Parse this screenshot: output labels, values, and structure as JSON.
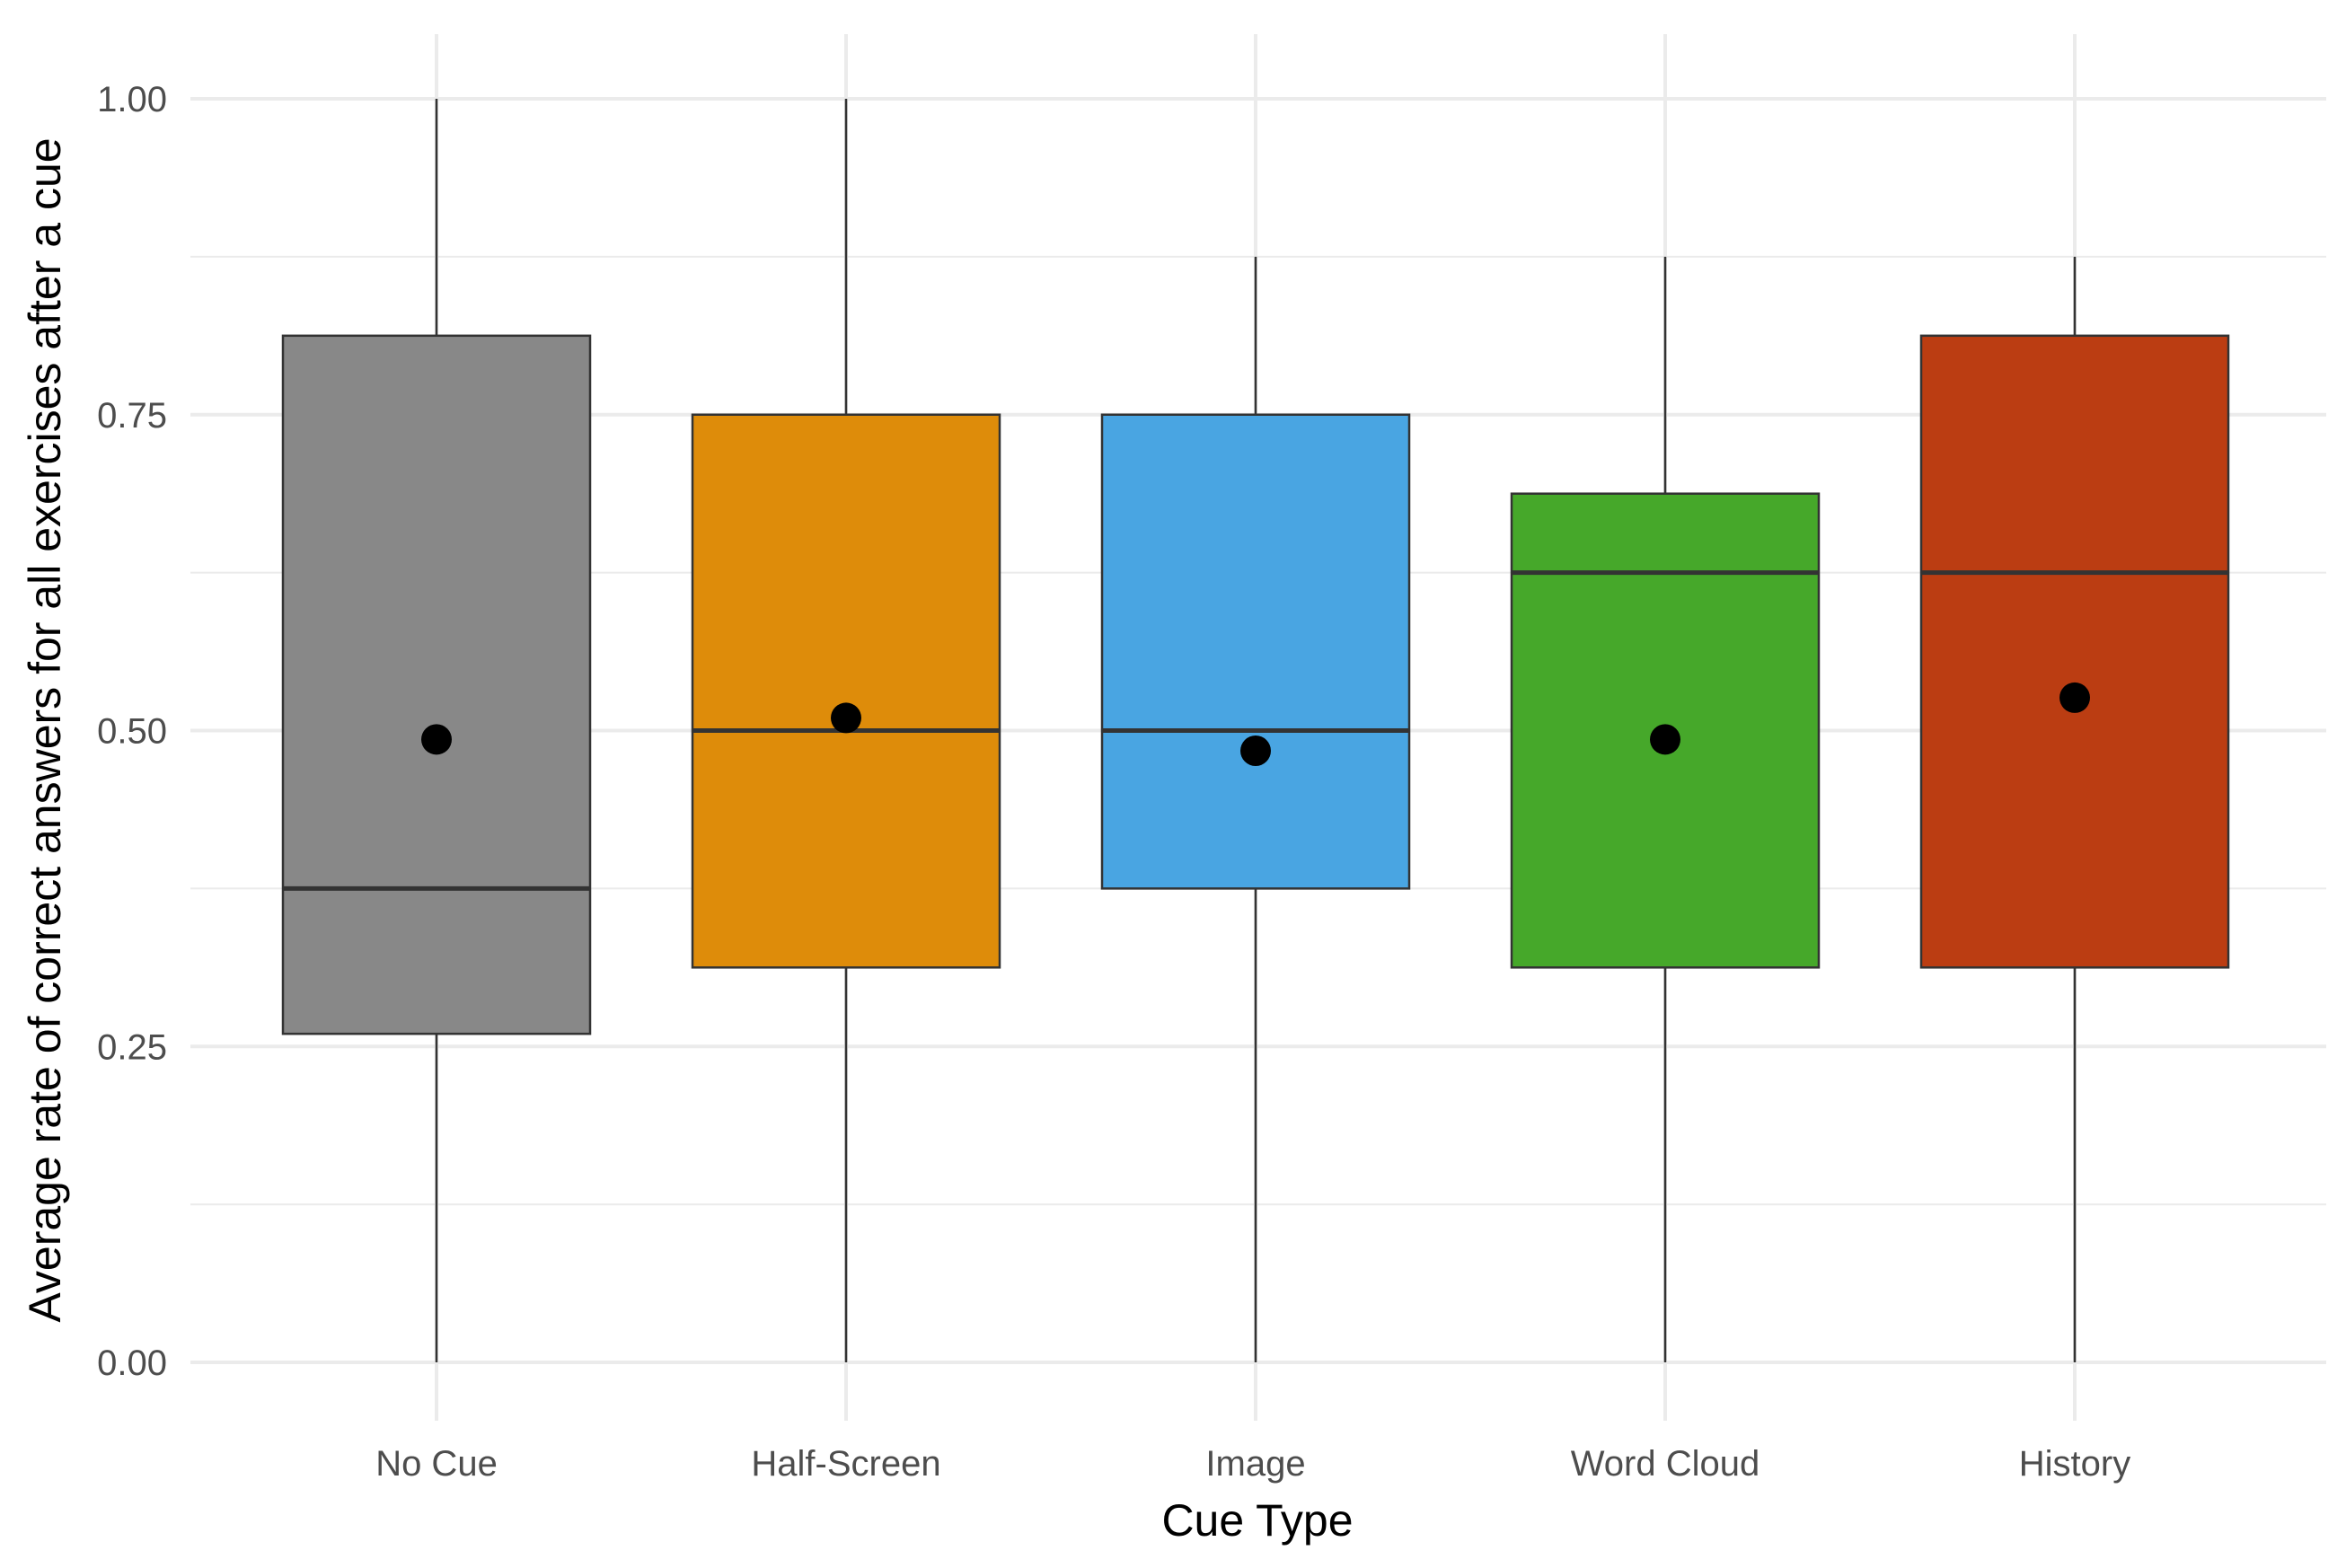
{
  "chart_data": {
    "type": "box",
    "xlabel": "Cue Type",
    "ylabel": "Average rate of correct answers for all exercises after a cue",
    "ylim": [
      0,
      1
    ],
    "y_ticks": [
      {
        "value": 0.0,
        "label": "0.00"
      },
      {
        "value": 0.25,
        "label": "0.25"
      },
      {
        "value": 0.5,
        "label": "0.50"
      },
      {
        "value": 0.75,
        "label": "0.75"
      },
      {
        "value": 1.0,
        "label": "1.00"
      }
    ],
    "y_minor_grid": [
      0.125,
      0.375,
      0.625,
      0.875
    ],
    "grid": true,
    "legend": "none",
    "categories": [
      "No Cue",
      "Half-Screen",
      "Image",
      "Word Cloud",
      "History"
    ],
    "boxes": [
      {
        "category": "No Cue",
        "min": 0.0,
        "q1": 0.26,
        "median": 0.375,
        "q3": 0.8125,
        "max": 1.0,
        "mean": 0.493,
        "color": "#888888"
      },
      {
        "category": "Half-Screen",
        "min": 0.0,
        "q1": 0.3125,
        "median": 0.5,
        "q3": 0.75,
        "max": 1.0,
        "mean": 0.51,
        "color": "#DE8C0A"
      },
      {
        "category": "Image",
        "min": 0.0,
        "q1": 0.375,
        "median": 0.5,
        "q3": 0.75,
        "max": 0.875,
        "mean": 0.484,
        "color": "#49A5E2"
      },
      {
        "category": "Word Cloud",
        "min": 0.0,
        "q1": 0.3125,
        "median": 0.625,
        "q3": 0.6875,
        "max": 0.875,
        "mean": 0.493,
        "color": "#46A82A"
      },
      {
        "category": "History",
        "min": 0.0,
        "q1": 0.3125,
        "median": 0.625,
        "q3": 0.8125,
        "max": 0.875,
        "mean": 0.526,
        "color": "#BB3D12"
      }
    ],
    "colors": {
      "grid": "#EBEBEB",
      "outline": "#333333",
      "mean_point": "#000000"
    }
  }
}
